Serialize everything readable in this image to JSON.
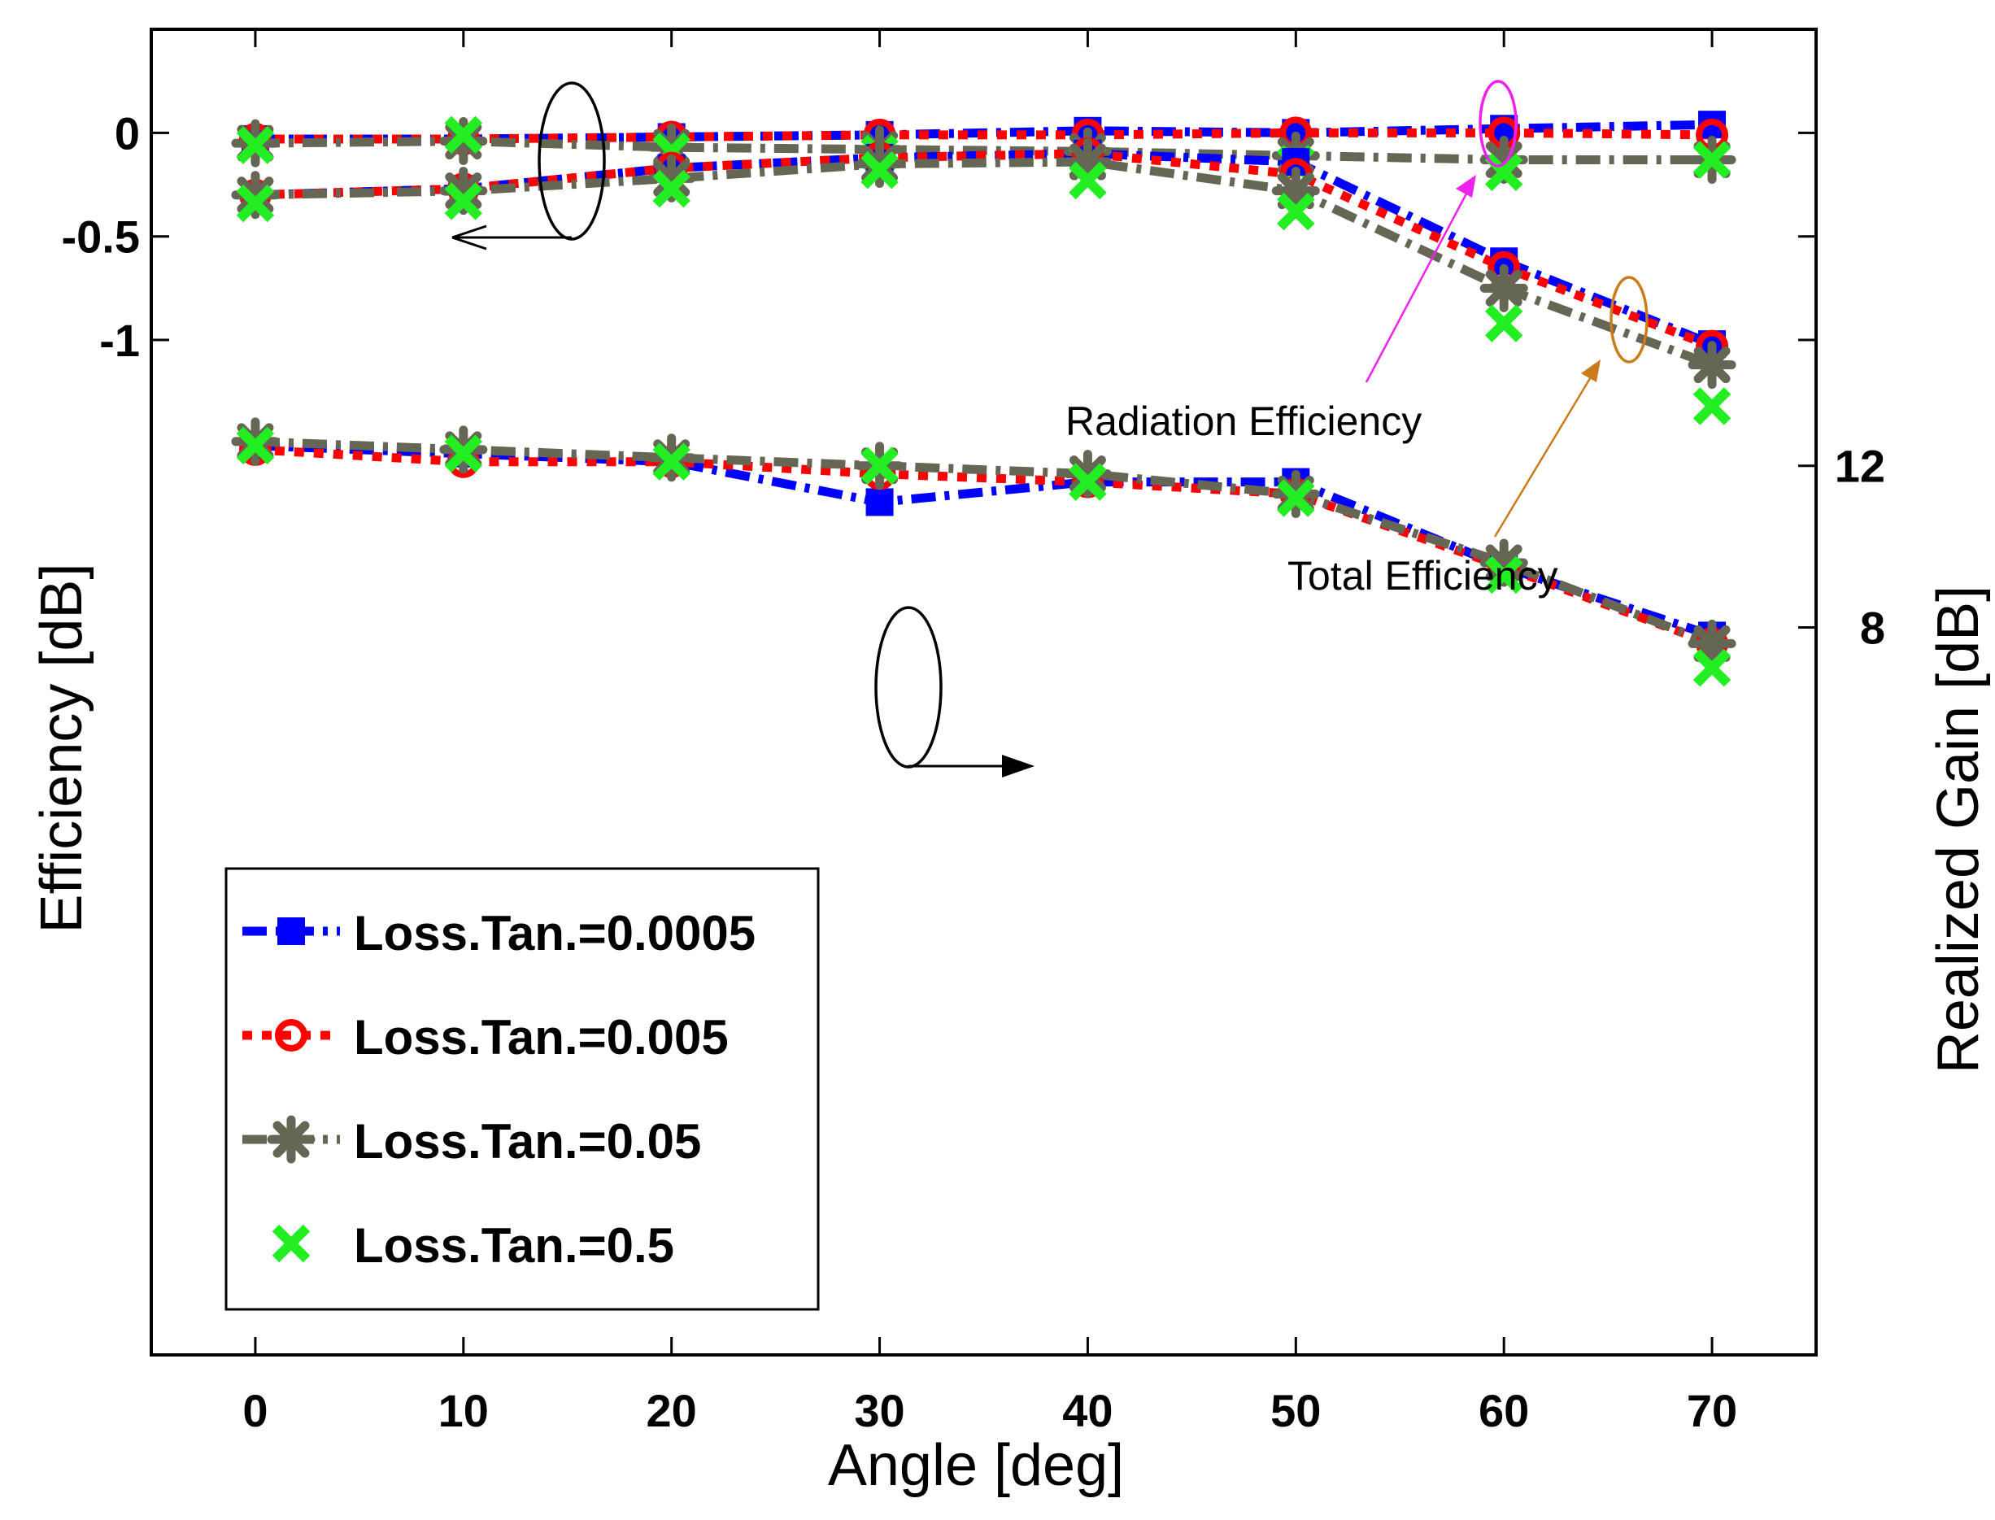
{
  "chart_data": {
    "type": "line",
    "title": "",
    "xlabel": "Angle [deg]",
    "ylabel_left": "Efficiency [dB]",
    "ylabel_right": "Realized Gain [dB]",
    "x": [
      0,
      10,
      20,
      30,
      40,
      50,
      60,
      70
    ],
    "x_ticks": [
      "0",
      "10",
      "20",
      "30",
      "40",
      "50",
      "60",
      "70"
    ],
    "xlim": [
      -5,
      75
    ],
    "left_axis": {
      "ylim": [
        -5.9,
        0.5
      ],
      "ticks": [
        0,
        -0.5,
        -1
      ],
      "tick_labels": [
        "0",
        "-0.5",
        "-1"
      ]
    },
    "right_axis": {
      "ylim": [
        -10,
        22.8
      ],
      "ticks": [
        12,
        8
      ],
      "tick_labels": [
        "12",
        "8"
      ]
    },
    "series": [
      {
        "name": "Loss.Tan.=0.0005",
        "color": "#0000ff",
        "marker": "square",
        "radiation_efficiency": [
          -0.03,
          -0.03,
          -0.02,
          -0.01,
          0.01,
          0.0,
          0.02,
          0.04
        ],
        "total_efficiency": [
          -0.3,
          -0.27,
          -0.17,
          -0.12,
          -0.1,
          -0.14,
          -0.62,
          -1.02
        ],
        "realized_gain": [
          12.5,
          12.3,
          12.1,
          11.1,
          11.6,
          11.6,
          9.5,
          7.8
        ]
      },
      {
        "name": "Loss.Tan.=0.005",
        "color": "#ff0000",
        "marker": "circle",
        "radiation_efficiency": [
          -0.03,
          -0.03,
          -0.02,
          -0.01,
          -0.01,
          0.0,
          0.0,
          -0.01
        ],
        "total_efficiency": [
          -0.3,
          -0.27,
          -0.17,
          -0.12,
          -0.1,
          -0.2,
          -0.65,
          -1.03
        ],
        "realized_gain": [
          12.4,
          12.1,
          12.1,
          11.8,
          11.6,
          11.3,
          9.5,
          7.6
        ]
      },
      {
        "name": "Loss.Tan.=0.05",
        "color": "#666655",
        "marker": "star",
        "radiation_efficiency": [
          -0.05,
          -0.04,
          -0.07,
          -0.08,
          -0.09,
          -0.11,
          -0.13,
          -0.13
        ],
        "total_efficiency": [
          -0.3,
          -0.28,
          -0.22,
          -0.15,
          -0.14,
          -0.28,
          -0.75,
          -1.12
        ],
        "realized_gain": [
          12.6,
          12.4,
          12.2,
          12.0,
          11.8,
          11.3,
          9.6,
          7.6
        ]
      },
      {
        "name": "Loss.Tan.=0.5",
        "color": "#22ee22",
        "marker": "x",
        "radiation_efficiency": [
          -0.06,
          -0.01,
          -0.09,
          -0.1,
          -0.14,
          -0.15,
          -0.19,
          -0.13
        ],
        "total_efficiency": [
          -0.34,
          -0.33,
          -0.27,
          -0.18,
          -0.23,
          -0.38,
          -0.92,
          -1.32
        ],
        "realized_gain": [
          12.5,
          12.3,
          12.1,
          12.0,
          11.6,
          11.2,
          9.3,
          7.0
        ]
      }
    ],
    "annotations": [
      "Radiation Efficiency",
      "Total Efficiency"
    ],
    "legend": {
      "position": "bottom-left"
    }
  }
}
